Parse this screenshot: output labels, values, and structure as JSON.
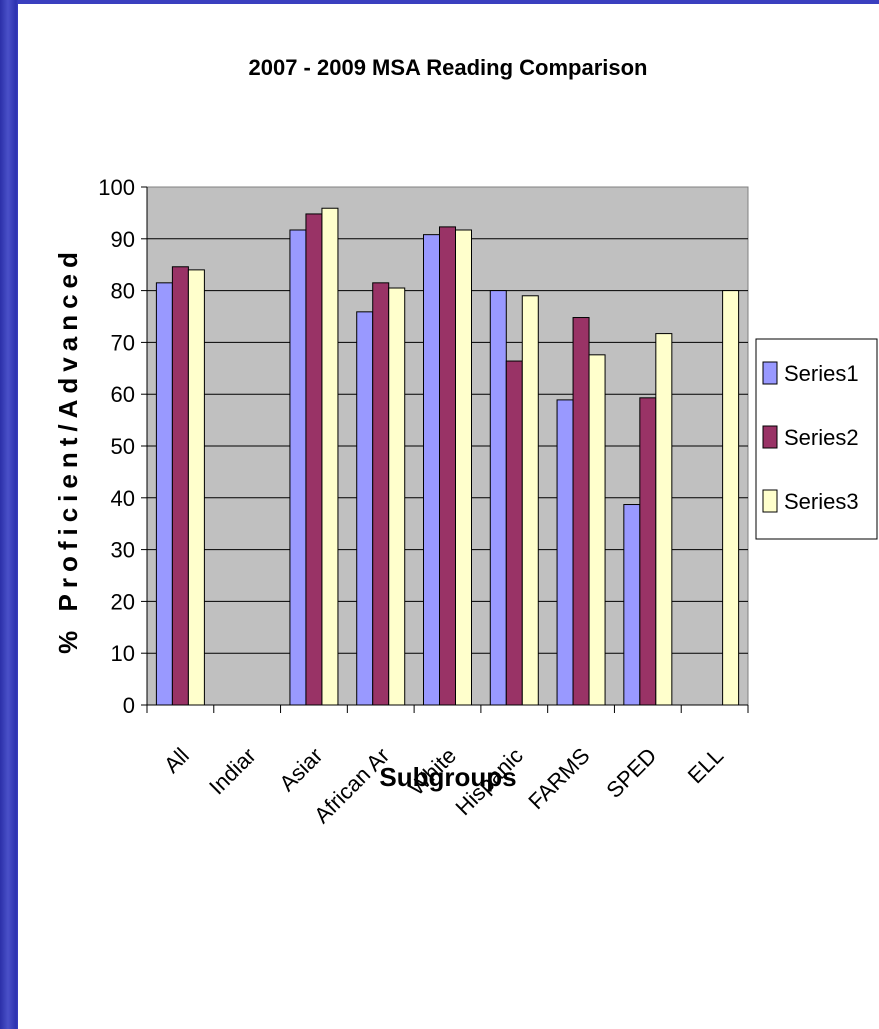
{
  "chart_data": {
    "type": "bar",
    "title": "2007 - 2009 MSA Reading Comparison",
    "xlabel": "Subgroups",
    "ylabel": "% Proficient/Advanced",
    "ylim": [
      0,
      100
    ],
    "yticks": [
      "0",
      "10",
      "20",
      "30",
      "40",
      "50",
      "60",
      "70",
      "80",
      "90",
      "100"
    ],
    "categories": [
      "All",
      "Indian",
      "Asian",
      "African Am",
      "White",
      "Hispanic",
      "FARMS",
      "SPED",
      "ELL"
    ],
    "category_labels_shown": [
      "All",
      "Indiar",
      "Asiar",
      "African Ar",
      "White",
      "Hispanic",
      "FARMS",
      "SPED",
      "ELL"
    ],
    "series": [
      {
        "name": "Series1",
        "color": "#9999ff",
        "values": [
          81.5,
          null,
          91.7,
          75.9,
          90.8,
          80.0,
          58.9,
          38.7,
          null
        ]
      },
      {
        "name": "Series2",
        "color": "#993366",
        "values": [
          84.6,
          null,
          94.8,
          81.5,
          92.3,
          66.4,
          74.8,
          59.3,
          null
        ]
      },
      {
        "name": "Series3",
        "color": "#ffffcc",
        "values": [
          84.0,
          null,
          95.9,
          80.5,
          91.7,
          79.0,
          67.6,
          71.7,
          80.0
        ]
      }
    ],
    "grid": true,
    "plot_background": "#c0c0c0",
    "legend_position": "right"
  }
}
